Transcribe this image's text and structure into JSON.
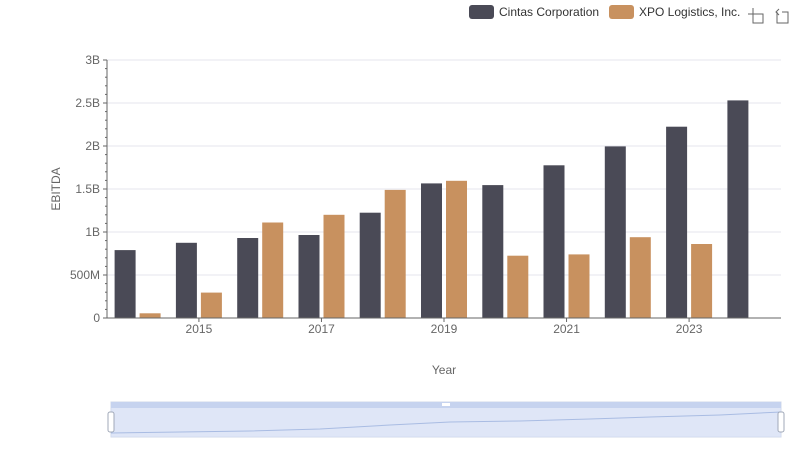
{
  "colors": {
    "cintas": "#4a4a56",
    "xpo": "#c8915f",
    "grid": "#e5e5ec",
    "slider": "#d6e0f5"
  },
  "toolbar": {
    "zoom_icon": "zoom-icon",
    "restore_icon": "restore-icon"
  },
  "chart_data": {
    "type": "bar",
    "xlabel": "Year",
    "ylabel": "EBITDA",
    "categories": [
      "2014",
      "2015",
      "2016",
      "2017",
      "2018",
      "2019",
      "2020",
      "2021",
      "2022",
      "2023",
      "2024"
    ],
    "x_tick_labels": [
      "2015",
      "2017",
      "2019",
      "2021",
      "2023"
    ],
    "y_tick_labels": [
      "0",
      "500M",
      "1B",
      "1.5B",
      "2B",
      "2.5B",
      "3B"
    ],
    "ylim": [
      0,
      3000000000
    ],
    "legend_position": "top-right",
    "grid": true,
    "series": [
      {
        "name": "Cintas Corporation",
        "color": "#4a4a56",
        "values": [
          790000000,
          875000000,
          930000000,
          965000000,
          1225000000,
          1565000000,
          1545000000,
          1775000000,
          1995000000,
          2225000000,
          2530000000
        ]
      },
      {
        "name": "XPO Logistics, Inc.",
        "color": "#c8915f",
        "values": [
          55000000,
          295000000,
          1110000000,
          1200000000,
          1490000000,
          1595000000,
          725000000,
          740000000,
          940000000,
          860000000,
          null
        ]
      }
    ]
  }
}
